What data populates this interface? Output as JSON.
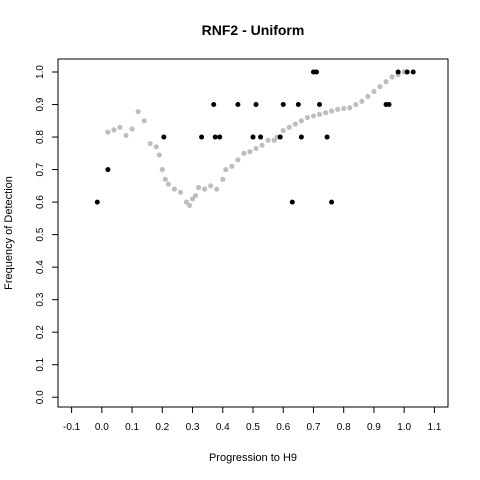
{
  "chart_data": {
    "type": "scatter",
    "title": "RNF2 - Uniform",
    "xlabel": "Progression to H9",
    "ylabel": "Frequency of Detection",
    "xlim": [
      -0.145,
      1.145
    ],
    "ylim": [
      -0.03,
      1.04
    ],
    "x_ticks": [
      -0.1,
      0.0,
      0.1,
      0.2,
      0.3,
      0.4,
      0.5,
      0.6,
      0.7,
      0.8,
      0.9,
      1.0,
      1.1
    ],
    "x_tick_labels": [
      "-0.1",
      "0.0",
      "0.1",
      "0.2",
      "0.3",
      "0.4",
      "0.5",
      "0.6",
      "0.7",
      "0.8",
      "0.9",
      "1.0",
      "1.1"
    ],
    "y_ticks": [
      0.0,
      0.1,
      0.2,
      0.3,
      0.4,
      0.5,
      0.6,
      0.7,
      0.8,
      0.9,
      1.0
    ],
    "y_tick_labels": [
      "0.0",
      "0.1",
      "0.2",
      "0.3",
      "0.4",
      "0.5",
      "0.6",
      "0.7",
      "0.8",
      "0.9",
      "1.0"
    ],
    "grid": false,
    "colors": {
      "observed": "#000000",
      "smoothed": "#bebebe"
    },
    "series": [
      {
        "role": "smoothed",
        "points": [
          [
            0.02,
            0.815
          ],
          [
            0.04,
            0.822
          ],
          [
            0.06,
            0.83
          ],
          [
            0.08,
            0.805
          ],
          [
            0.1,
            0.825
          ],
          [
            0.12,
            0.878
          ],
          [
            0.14,
            0.85
          ],
          [
            0.16,
            0.78
          ],
          [
            0.18,
            0.77
          ],
          [
            0.19,
            0.745
          ],
          [
            0.2,
            0.7
          ],
          [
            0.21,
            0.67
          ],
          [
            0.22,
            0.655
          ],
          [
            0.24,
            0.64
          ],
          [
            0.26,
            0.63
          ],
          [
            0.28,
            0.6
          ],
          [
            0.29,
            0.59
          ],
          [
            0.3,
            0.61
          ],
          [
            0.31,
            0.62
          ],
          [
            0.32,
            0.645
          ],
          [
            0.34,
            0.64
          ],
          [
            0.36,
            0.65
          ],
          [
            0.38,
            0.64
          ],
          [
            0.4,
            0.67
          ],
          [
            0.41,
            0.7
          ],
          [
            0.43,
            0.71
          ],
          [
            0.45,
            0.73
          ],
          [
            0.47,
            0.75
          ],
          [
            0.49,
            0.755
          ],
          [
            0.51,
            0.765
          ],
          [
            0.53,
            0.775
          ],
          [
            0.55,
            0.79
          ],
          [
            0.57,
            0.79
          ],
          [
            0.58,
            0.8
          ],
          [
            0.6,
            0.82
          ],
          [
            0.62,
            0.83
          ],
          [
            0.64,
            0.84
          ],
          [
            0.66,
            0.85
          ],
          [
            0.68,
            0.86
          ],
          [
            0.7,
            0.865
          ],
          [
            0.72,
            0.87
          ],
          [
            0.74,
            0.875
          ],
          [
            0.76,
            0.88
          ],
          [
            0.78,
            0.885
          ],
          [
            0.8,
            0.888
          ],
          [
            0.82,
            0.89
          ],
          [
            0.84,
            0.9
          ],
          [
            0.86,
            0.91
          ],
          [
            0.88,
            0.925
          ],
          [
            0.9,
            0.94
          ],
          [
            0.92,
            0.955
          ],
          [
            0.94,
            0.97
          ],
          [
            0.96,
            0.985
          ],
          [
            0.98,
            0.992
          ],
          [
            1.0,
            1.0
          ]
        ]
      },
      {
        "role": "observed",
        "points": [
          [
            -0.015,
            0.6
          ],
          [
            0.02,
            0.7
          ],
          [
            0.205,
            0.8
          ],
          [
            0.33,
            0.8
          ],
          [
            0.37,
            0.9
          ],
          [
            0.375,
            0.8
          ],
          [
            0.39,
            0.8
          ],
          [
            0.45,
            0.9
          ],
          [
            0.5,
            0.8
          ],
          [
            0.51,
            0.9
          ],
          [
            0.525,
            0.8
          ],
          [
            0.59,
            0.8
          ],
          [
            0.6,
            0.9
          ],
          [
            0.63,
            0.6
          ],
          [
            0.65,
            0.9
          ],
          [
            0.66,
            0.8
          ],
          [
            0.7,
            1.0
          ],
          [
            0.71,
            1.0
          ],
          [
            0.72,
            0.9
          ],
          [
            0.745,
            0.8
          ],
          [
            0.76,
            0.6
          ],
          [
            0.94,
            0.9
          ],
          [
            0.95,
            0.9
          ],
          [
            0.98,
            1.0
          ],
          [
            1.01,
            1.0
          ],
          [
            1.03,
            1.0
          ]
        ]
      }
    ]
  }
}
